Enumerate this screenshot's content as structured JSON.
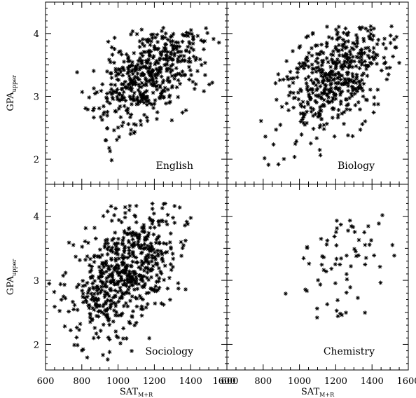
{
  "chart_data": [
    {
      "type": "scatter",
      "panel": "English",
      "label": "English",
      "xlim": [
        600,
        1600
      ],
      "ylim": [
        1.6,
        4.5
      ],
      "xticks": [],
      "yticks": [
        2,
        3,
        4
      ],
      "ylabel": "GPA",
      "ylabel_sub": "upper",
      "xlabel": "",
      "xlabel_sub": "",
      "series": [
        {
          "count": 520,
          "x_center": 1175,
          "x_sd": 150,
          "y_center": 3.4,
          "y_sd": 0.45,
          "corr": 0.55,
          "x_range": [
            660,
            1560
          ],
          "y_range": [
            1.65,
            4.1
          ],
          "seed": 11
        }
      ]
    },
    {
      "type": "scatter",
      "panel": "Biology",
      "label": "Biology",
      "xlim": [
        600,
        1600
      ],
      "ylim": [
        1.6,
        4.5
      ],
      "xticks": [],
      "yticks": [],
      "xlabel": "",
      "xlabel_sub": "",
      "series": [
        {
          "count": 500,
          "x_center": 1190,
          "x_sd": 140,
          "y_center": 3.3,
          "y_sd": 0.45,
          "corr": 0.4,
          "x_range": [
            760,
            1560
          ],
          "y_range": [
            1.8,
            4.15
          ],
          "seed": 23
        }
      ]
    },
    {
      "type": "scatter",
      "panel": "Sociology",
      "label": "Sociology",
      "xlim": [
        600,
        1600
      ],
      "ylim": [
        1.6,
        4.5
      ],
      "xticks": [
        600,
        800,
        1000,
        1200,
        1400,
        1600
      ],
      "yticks": [
        2,
        3,
        4
      ],
      "ylabel": "GPA",
      "ylabel_sub": "upper",
      "xlabel": "SAT",
      "xlabel_sub": "M+R",
      "series": [
        {
          "count": 640,
          "x_center": 1040,
          "x_sd": 145,
          "y_center": 3.15,
          "y_sd": 0.5,
          "corr": 0.45,
          "x_range": [
            620,
            1450
          ],
          "y_range": [
            1.75,
            4.2
          ],
          "seed": 37
        }
      ]
    },
    {
      "type": "scatter",
      "panel": "Chemistry",
      "label": "Chemistry",
      "xlim": [
        600,
        1600
      ],
      "ylim": [
        1.6,
        4.5
      ],
      "xticks": [
        600,
        800,
        1000,
        1200,
        1400,
        1600
      ],
      "yticks": [],
      "xlabel": "SAT",
      "xlabel_sub": "M+R",
      "series": [
        {
          "count": 70,
          "x_center": 1230,
          "x_sd": 140,
          "y_center": 3.2,
          "y_sd": 0.5,
          "corr": 0.5,
          "x_range": [
            850,
            1550
          ],
          "y_range": [
            2.1,
            4.2
          ],
          "seed": 53
        }
      ]
    }
  ]
}
